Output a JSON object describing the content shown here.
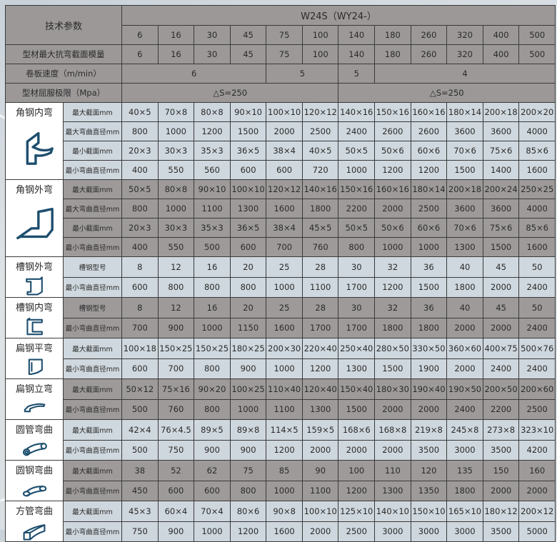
{
  "header": {
    "tech_params": "技术参数",
    "model": "W24S（WY24-）",
    "models": [
      "6",
      "16",
      "30",
      "45",
      "75",
      "100",
      "140",
      "180",
      "260",
      "320",
      "400",
      "500"
    ],
    "section_modulus_label": "型材最大抗弯截面模量",
    "section_modulus": [
      "6",
      "16",
      "30",
      "45",
      "75",
      "100",
      "140",
      "180",
      "260",
      "320",
      "400",
      "500"
    ],
    "speed_label": "卷板速度（m/min）",
    "speed": [
      {
        "value": "6",
        "span": 4
      },
      {
        "value": "5",
        "span": 2
      },
      {
        "value": "5",
        "span": 1
      },
      {
        "value": "4",
        "span": 5
      }
    ],
    "yield_label": "型材屈服极限（Mpa）",
    "yield": [
      {
        "value": "△S=250",
        "span": 6
      },
      {
        "value": "△S=250",
        "span": 6
      }
    ]
  },
  "icon_color": "#1d4e6e",
  "groups": [
    {
      "name": "角钢内弯",
      "icon": "angle-steel-inner-bend-icon",
      "shade": "light",
      "rows": [
        {
          "label": "最大截面mm",
          "values": [
            "40×5",
            "70×8",
            "80×8",
            "90×10",
            "100×10",
            "120×12",
            "140×16",
            "150×16",
            "160×16",
            "180×14",
            "200×18",
            "200×20"
          ]
        },
        {
          "label": "最大弯曲直径mm",
          "values": [
            "800",
            "1000",
            "1200",
            "1500",
            "2000",
            "2500",
            "2400",
            "2600",
            "2600",
            "3600",
            "3600",
            "4000"
          ]
        },
        {
          "label": "最小截面mm",
          "values": [
            "20×3",
            "30×3",
            "35×3",
            "36×5",
            "38×4",
            "40×5",
            "50×5",
            "50×6",
            "60×6",
            "70×6",
            "75×6",
            "85×6"
          ]
        },
        {
          "label": "最小弯曲直径mm",
          "values": [
            "400",
            "550",
            "560",
            "600",
            "600",
            "720",
            "1000",
            "1200",
            "1200",
            "1500",
            "1400",
            "1600"
          ]
        }
      ]
    },
    {
      "name": "角钢外弯",
      "icon": "angle-steel-outer-bend-icon",
      "shade": "gray",
      "rows": [
        {
          "label": "最大截面mm",
          "values": [
            "50×5",
            "80×8",
            "90×10",
            "100×10",
            "120×12",
            "140×16",
            "150×16",
            "160×16",
            "180×14",
            "200×18",
            "200×24",
            "250×25"
          ]
        },
        {
          "label": "最大弯曲直径mm",
          "values": [
            "800",
            "1000",
            "1100",
            "1300",
            "1600",
            "1800",
            "2200",
            "2000",
            "2500",
            "3600",
            "3600",
            "4000"
          ]
        },
        {
          "label": "最小截面mm",
          "values": [
            "20×3",
            "30×3",
            "35×3",
            "36×5",
            "38×4",
            "45×5",
            "50×5",
            "50×6",
            "60×6",
            "70×6",
            "75×6",
            "85×6"
          ]
        },
        {
          "label": "最小弯曲直径mm",
          "values": [
            "400",
            "550",
            "500",
            "600",
            "700",
            "760",
            "800",
            "1000",
            "1000",
            "1300",
            "1500",
            "1600"
          ]
        }
      ]
    },
    {
      "name": "槽钢外弯",
      "icon": "channel-steel-outer-bend-icon",
      "shade": "light",
      "rows": [
        {
          "label": "槽钢型号",
          "values": [
            "8",
            "12",
            "16",
            "20",
            "25",
            "28",
            "30",
            "32",
            "36",
            "40",
            "45",
            "50"
          ]
        },
        {
          "label": "最小弯曲直径mm",
          "values": [
            "600",
            "800",
            "800",
            "800",
            "1000",
            "1100",
            "1700",
            "1200",
            "1500",
            "1800",
            "2000",
            "2400"
          ]
        }
      ]
    },
    {
      "name": "槽钢内弯",
      "icon": "channel-steel-inner-bend-icon",
      "shade": "gray",
      "rows": [
        {
          "label": "槽钢型号",
          "values": [
            "8",
            "12",
            "16",
            "20",
            "25",
            "28",
            "30",
            "32",
            "36",
            "40",
            "45",
            "50"
          ]
        },
        {
          "label": "最小弯曲直径mm",
          "values": [
            "700",
            "900",
            "1000",
            "1150",
            "1600",
            "1700",
            "1700",
            "1800",
            "1800",
            "2000",
            "2000",
            "2400"
          ]
        }
      ]
    },
    {
      "name": "扁钢平弯",
      "icon": "flat-steel-flat-bend-icon",
      "shade": "light",
      "rows": [
        {
          "label": "最大截面mm",
          "values": [
            "100×18",
            "150×25",
            "150×25",
            "180×25",
            "200×30",
            "220×40",
            "250×40",
            "280×50",
            "330×50",
            "360×60",
            "400×75",
            "500×76"
          ]
        },
        {
          "label": "最小弯曲直径mm",
          "values": [
            "600",
            "700",
            "800",
            "900",
            "1000",
            "1200",
            "1300",
            "1500",
            "1900",
            "2000",
            "2400",
            "2400"
          ]
        }
      ]
    },
    {
      "name": "扁钢立弯",
      "icon": "flat-steel-edge-bend-icon",
      "shade": "gray",
      "rows": [
        {
          "label": "最大截面mm",
          "values": [
            "50×12",
            "75×16",
            "90×20",
            "100×25",
            "110×40",
            "120×40",
            "150×40",
            "180×30",
            "190×40",
            "190×50",
            "200×50",
            "200×60"
          ]
        },
        {
          "label": "最小弯曲直径mm",
          "values": [
            "500",
            "760",
            "800",
            "1000",
            "1100",
            "1300",
            "1500",
            "2000",
            "2000",
            "2400",
            "2200",
            "2500"
          ]
        }
      ]
    },
    {
      "name": "圆管弯曲",
      "icon": "round-pipe-bend-icon",
      "shade": "light",
      "rows": [
        {
          "label": "最大截面mm",
          "values": [
            "42×4",
            "76×4.5",
            "89×5",
            "89×8",
            "114×5",
            "159×5",
            "168×6",
            "168×8",
            "219×8",
            "245×8",
            "273×8",
            "323×10"
          ]
        },
        {
          "label": "最小弯曲直径mm",
          "values": [
            "500",
            "750",
            "900",
            "900",
            "1200",
            "2000",
            "2000",
            "2000",
            "3500",
            "3000",
            "3500",
            "4200"
          ]
        }
      ]
    },
    {
      "name": "圆钢弯曲",
      "icon": "round-bar-bend-icon",
      "shade": "gray",
      "rows": [
        {
          "label": "最大截面mm",
          "values": [
            "38",
            "52",
            "62",
            "75",
            "85",
            "90",
            "100",
            "110",
            "120",
            "135",
            "150",
            "160"
          ]
        },
        {
          "label": "最小弯曲直径mm",
          "values": [
            "450",
            "600",
            "600",
            "800",
            "1000",
            "1100",
            "1200",
            "1300",
            "1350",
            "1800",
            "2000",
            "2000"
          ]
        }
      ]
    },
    {
      "name": "方管弯曲",
      "icon": "square-tube-bend-icon",
      "shade": "light",
      "rows": [
        {
          "label": "最大截面mm",
          "values": [
            "45×3",
            "60×4",
            "70×4",
            "80×6",
            "90×8",
            "100×10",
            "125×10",
            "140×10",
            "150×10",
            "165×10",
            "180×12",
            "200×12"
          ]
        },
        {
          "label": "最小弯曲直径mm",
          "values": [
            "750",
            "900",
            "1000",
            "1200",
            "1600",
            "2000",
            "2500",
            "3000",
            "3000",
            "3000",
            "3500",
            "5000"
          ]
        }
      ]
    }
  ]
}
